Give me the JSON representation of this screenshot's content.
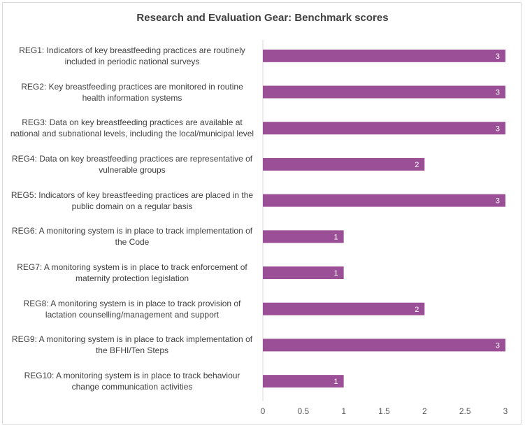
{
  "chart_data": {
    "type": "bar",
    "orientation": "horizontal",
    "title": "Research and Evaluation Gear: Benchmark scores",
    "categories": [
      "REG1: Indicators of key breastfeeding practices are routinely included in periodic national surveys",
      "REG2: Key breastfeeding practices are monitored in routine health information systems",
      "REG3: Data on key breastfeeding practices are available at national and subnational levels, including the local/municipal level",
      "REG4: Data on key breastfeeding practices are representative of vulnerable groups",
      "REG5: Indicators of key breastfeeding practices are placed in the public domain on a regular basis",
      "REG6: A monitoring system is in place to track implementation of the Code",
      "REG7: A monitoring system is in place to track enforcement of maternity protection legislation",
      "REG8: A monitoring system is in place to track provision of lactation counselling/management and support",
      "REG9: A monitoring system is in place to track implementation of the BFHI/Ten Steps",
      "REG10: A monitoring system is in place to track behaviour change communication activities"
    ],
    "values": [
      3,
      3,
      3,
      2,
      3,
      1,
      1,
      2,
      3,
      1
    ],
    "data_labels": [
      "3",
      "3",
      "3",
      "2",
      "3",
      "1",
      "1",
      "2",
      "3",
      "1"
    ],
    "xlim": [
      0,
      3
    ],
    "x_ticks": [
      "0",
      "0.5",
      "1",
      "1.5",
      "2",
      "2.5",
      "3"
    ],
    "grid": false,
    "legend": "none",
    "bar_color": "#9b4f96"
  }
}
